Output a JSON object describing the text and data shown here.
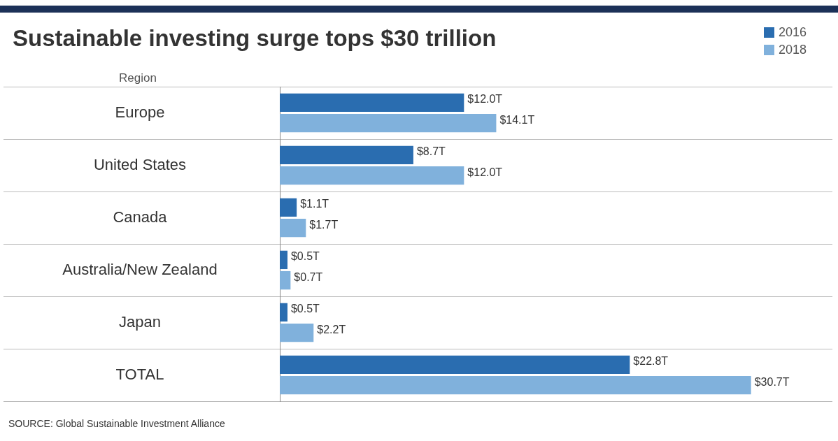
{
  "chart_data": {
    "type": "bar",
    "orientation": "horizontal",
    "title": "Sustainable investing surge tops $30 trillion",
    "ylabel": "Region",
    "categories": [
      "Europe",
      "United States",
      "Canada",
      "Australia/New Zealand",
      "Japan",
      "TOTAL"
    ],
    "series": [
      {
        "name": "2016",
        "color": "#2a6db0",
        "values": [
          12.0,
          8.7,
          1.1,
          0.5,
          0.5,
          22.8
        ],
        "value_labels": [
          "$12.0T",
          "$8.7T",
          "$1.1T",
          "$0.5T",
          "$0.5T",
          "$22.8T"
        ]
      },
      {
        "name": "2018",
        "color": "#80b1dc",
        "values": [
          14.1,
          12.0,
          1.7,
          0.7,
          2.2,
          30.7
        ],
        "value_labels": [
          "$14.1T",
          "$12.0T",
          "$1.7T",
          "$0.7T",
          "$2.2T",
          "$30.7T"
        ]
      }
    ],
    "xlim": [
      0,
      36
    ],
    "tick_labels": "y",
    "grid": "y",
    "legend": "top right",
    "annotations": [
      "SOURCE: Global Sustainable Investment Alliance"
    ]
  }
}
